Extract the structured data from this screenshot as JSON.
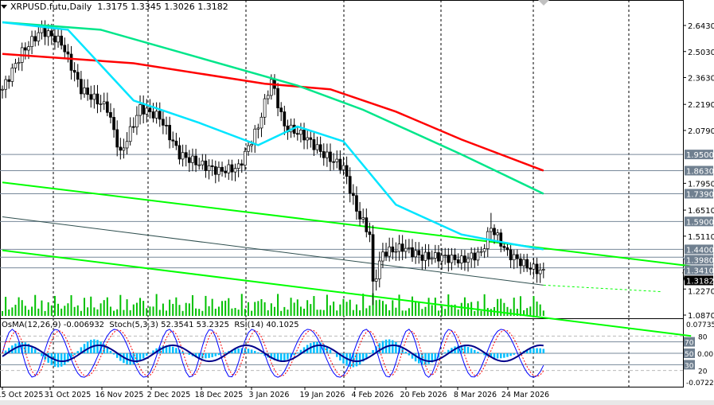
{
  "chart_data": {
    "type": "candlestick",
    "title": "XRPUSD.futu,Daily",
    "ohlc": {
      "open": "1.3175",
      "high": "1.3345",
      "low": "1.3026",
      "close": "1.3182"
    },
    "price_axis": {
      "ticks": [
        "2.6430",
        "2.5030",
        "2.3630",
        "2.2190",
        "2.0790",
        "1.7950",
        "1.6510",
        "1.5110",
        "1.2270",
        "1.0870"
      ],
      "range": [
        1.087,
        2.643
      ]
    },
    "levels": [
      {
        "label": "1.9500",
        "value": 1.95
      },
      {
        "label": "1.8630",
        "value": 1.863
      },
      {
        "label": "1.7390",
        "value": 1.739
      },
      {
        "label": "1.5900",
        "value": 1.59
      },
      {
        "label": "1.4400",
        "value": 1.44
      },
      {
        "label": "1.3980",
        "value": 1.398
      },
      {
        "label": "1.3410",
        "value": 1.341
      }
    ],
    "current_price": {
      "label": "1.3182",
      "value": 1.3182
    },
    "x_labels": [
      "15 Oct 2025",
      "31 Oct 2025",
      "16 Nov 2025",
      "2 Dec 2025",
      "18 Dec 2025",
      "3 Jan 2026",
      "19 Jan 2026",
      "4 Feb 2026",
      "20 Feb 2026",
      "8 Mar 2026",
      "24 Mar 2026"
    ],
    "close_anchors": [
      [
        0,
        2.3
      ],
      [
        6,
        2.5
      ],
      [
        12,
        2.62
      ],
      [
        18,
        2.55
      ],
      [
        24,
        2.3
      ],
      [
        32,
        2.2
      ],
      [
        36,
        1.95
      ],
      [
        42,
        2.2
      ],
      [
        48,
        2.15
      ],
      [
        54,
        1.95
      ],
      [
        60,
        1.9
      ],
      [
        66,
        1.86
      ],
      [
        72,
        1.88
      ],
      [
        78,
        2.1
      ],
      [
        82,
        2.35
      ],
      [
        86,
        2.1
      ],
      [
        92,
        2.05
      ],
      [
        98,
        1.95
      ],
      [
        104,
        1.88
      ],
      [
        108,
        1.65
      ],
      [
        112,
        1.52
      ],
      [
        113,
        1.25
      ],
      [
        116,
        1.42
      ],
      [
        122,
        1.45
      ],
      [
        128,
        1.4
      ],
      [
        134,
        1.4
      ],
      [
        140,
        1.38
      ],
      [
        146,
        1.42
      ],
      [
        149,
        1.56
      ],
      [
        154,
        1.42
      ],
      [
        160,
        1.35
      ],
      [
        165,
        1.318
      ]
    ],
    "moving_averages": [
      {
        "name": "MA slow",
        "color": "#ff0000",
        "points": [
          [
            0,
            2.49
          ],
          [
            40,
            2.44
          ],
          [
            80,
            2.33
          ],
          [
            100,
            2.3
          ],
          [
            120,
            2.18
          ],
          [
            140,
            2.03
          ],
          [
            165,
            1.863
          ]
        ]
      },
      {
        "name": "MA mid",
        "color": "#00e68a",
        "points": [
          [
            0,
            2.66
          ],
          [
            30,
            2.62
          ],
          [
            60,
            2.47
          ],
          [
            90,
            2.32
          ],
          [
            110,
            2.19
          ],
          [
            140,
            1.95
          ],
          [
            165,
            1.739
          ]
        ]
      },
      {
        "name": "MA fast",
        "color": "#00e5ff",
        "points": [
          [
            0,
            2.66
          ],
          [
            20,
            2.62
          ],
          [
            40,
            2.24
          ],
          [
            60,
            2.12
          ],
          [
            78,
            2.0
          ],
          [
            90,
            2.1
          ],
          [
            104,
            2.02
          ],
          [
            120,
            1.68
          ],
          [
            140,
            1.52
          ],
          [
            155,
            1.47
          ],
          [
            165,
            1.44
          ]
        ]
      }
    ],
    "trendlines": [
      {
        "name": "channel-upper",
        "color": "#00ff00",
        "from": [
          0,
          1.8
        ],
        "to": [
          210,
          1.35
        ]
      },
      {
        "name": "channel-mid",
        "color": "#2f4f4f",
        "from": [
          0,
          1.615
        ],
        "to": [
          165,
          1.248
        ]
      },
      {
        "name": "channel-lower",
        "color": "#00ff00",
        "from": [
          0,
          1.435
        ],
        "to": [
          210,
          0.975
        ]
      }
    ],
    "indicators": {
      "osma": {
        "label": "OsMA(12,26,9)",
        "value": "-0.006932"
      },
      "stoch": {
        "label": "Stoch(5,3,3)",
        "main": "52.3541",
        "signal": "53.2325"
      },
      "rsi": {
        "label": "RSI(14)",
        "value": "40.1025"
      },
      "axis": {
        "max": "0.077356",
        "min": "-0.07226",
        "levels": [
          "80",
          "70",
          "50",
          "30",
          "20"
        ],
        "zero": "0.00"
      }
    },
    "colors": {
      "bull": "#000000",
      "bear": "#000000",
      "volume": "#00c000",
      "osma": "#00bfff",
      "stoch_main": "#0000ff",
      "stoch_signal": "#ff0000",
      "rsi": "#00008b",
      "level_box": "#708090"
    }
  }
}
